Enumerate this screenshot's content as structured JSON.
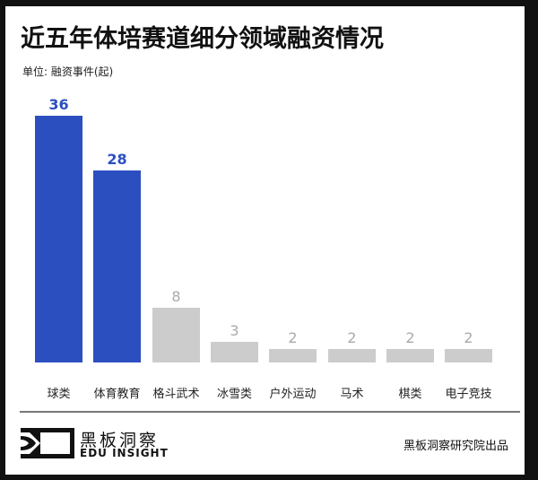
{
  "header": {
    "title": "近五年体培赛道细分领域融资情况",
    "subtitle": "单位: 融资事件(起)"
  },
  "colors": {
    "highlight": "#2c4fc0",
    "muted": "#cccccc",
    "highlight_label": "#2c4fc0",
    "muted_label": "#aaaaaa"
  },
  "chart_data": {
    "type": "bar",
    "title": "近五年体培赛道细分领域融资情况",
    "subtitle": "单位: 融资事件(起)",
    "xlabel": "",
    "ylabel": "融资事件(起)",
    "categories": [
      "球类",
      "体育教育",
      "格斗武术",
      "冰雪类",
      "户外运动",
      "马术",
      "棋类",
      "电子竞技"
    ],
    "values": [
      36,
      28,
      8,
      3,
      2,
      2,
      2,
      2
    ],
    "highlighted": [
      true,
      true,
      false,
      false,
      false,
      false,
      false,
      false
    ],
    "ylim": [
      0,
      36
    ],
    "grid": false,
    "legend": "none",
    "data_labels": true
  },
  "footer": {
    "logo_cn": "黑板洞察",
    "logo_en": "EDU INSIGHT",
    "credit": "黑板洞察研究院出品"
  }
}
